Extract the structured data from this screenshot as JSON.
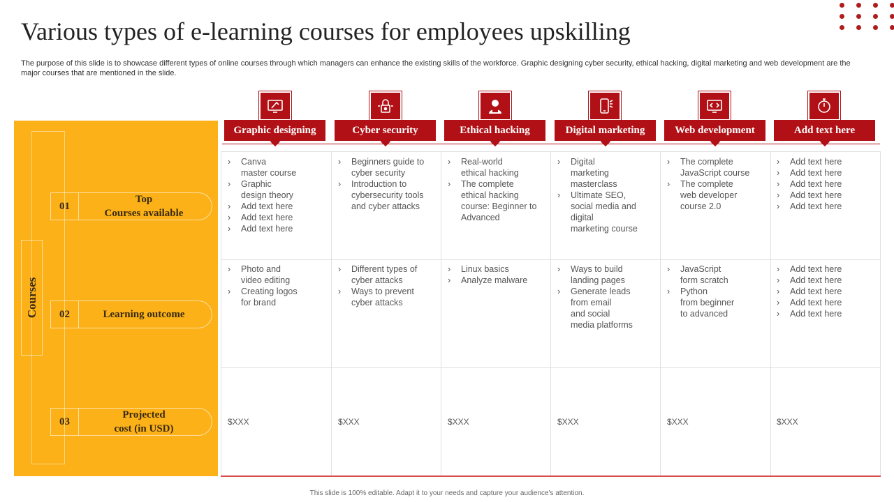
{
  "title": "Various types of e-learning courses for employees upskilling",
  "description": "The purpose of this slide is to showcase different types of online courses through which managers can enhance the existing skills of the workforce. Graphic designing cyber security, ethical hacking, digital marketing and web development are the major courses that are mentioned in the slide.",
  "side_label": "Courses",
  "rows": [
    {
      "num": "01",
      "label": "Top\nCourses available"
    },
    {
      "num": "02",
      "label": "Learning outcome"
    },
    {
      "num": "03",
      "label": "Projected\ncost (in USD)"
    }
  ],
  "columns": [
    {
      "header": "Graphic designing",
      "icon": "design-icon",
      "courses": [
        "Canva\nmaster course",
        "Graphic\ndesign theory",
        "Add text here",
        "Add text here",
        "Add text here"
      ],
      "outcomes": [
        "Photo and\nvideo editing",
        "Creating logos\nfor brand"
      ],
      "cost": "$XXX"
    },
    {
      "header": "Cyber security",
      "icon": "lock-icon",
      "courses": [
        "Beginners guide to\ncyber security",
        "Introduction to\ncybersecurity tools\nand cyber attacks"
      ],
      "outcomes": [
        "Different types of\ncyber attacks",
        "Ways to prevent\ncyber attacks"
      ],
      "cost": "$XXX"
    },
    {
      "header": "Ethical hacking",
      "icon": "hacker-icon",
      "courses": [
        "Real-world\nethical hacking",
        "The complete\nethical hacking\ncourse: Beginner to\nAdvanced"
      ],
      "outcomes": [
        "Linux basics",
        "Analyze malware"
      ],
      "cost": "$XXX"
    },
    {
      "header": "Digital marketing",
      "icon": "mobile-icon",
      "courses": [
        "Digital\nmarketing\nmasterclass",
        "Ultimate SEO,\nsocial media and\ndigital\nmarketing course"
      ],
      "outcomes": [
        "Ways to build\nlanding pages",
        "Generate leads\nfrom email\nand social\nmedia platforms"
      ],
      "cost": "$XXX"
    },
    {
      "header": "Web development",
      "icon": "web-code-icon",
      "courses": [
        "The complete\nJavaScript course",
        "The complete\nweb developer\ncourse 2.0"
      ],
      "outcomes": [
        "JavaScript\nform scratch",
        "Python\nfrom beginner\nto advanced"
      ],
      "cost": "$XXX"
    },
    {
      "header": "Add text here",
      "icon": "stopwatch-icon",
      "courses": [
        "Add text here",
        "Add text here",
        "Add text here",
        "Add text here",
        "Add text here"
      ],
      "outcomes": [
        "Add text here",
        "Add text here",
        "Add text here",
        "Add text here",
        "Add text here"
      ],
      "cost": "$XXX"
    }
  ],
  "footer": "This slide is 100% editable. Adapt it to your needs and capture your audience's attention.",
  "colors": {
    "accent": "#b11116",
    "panel": "#fbb117",
    "text": "#555555"
  }
}
